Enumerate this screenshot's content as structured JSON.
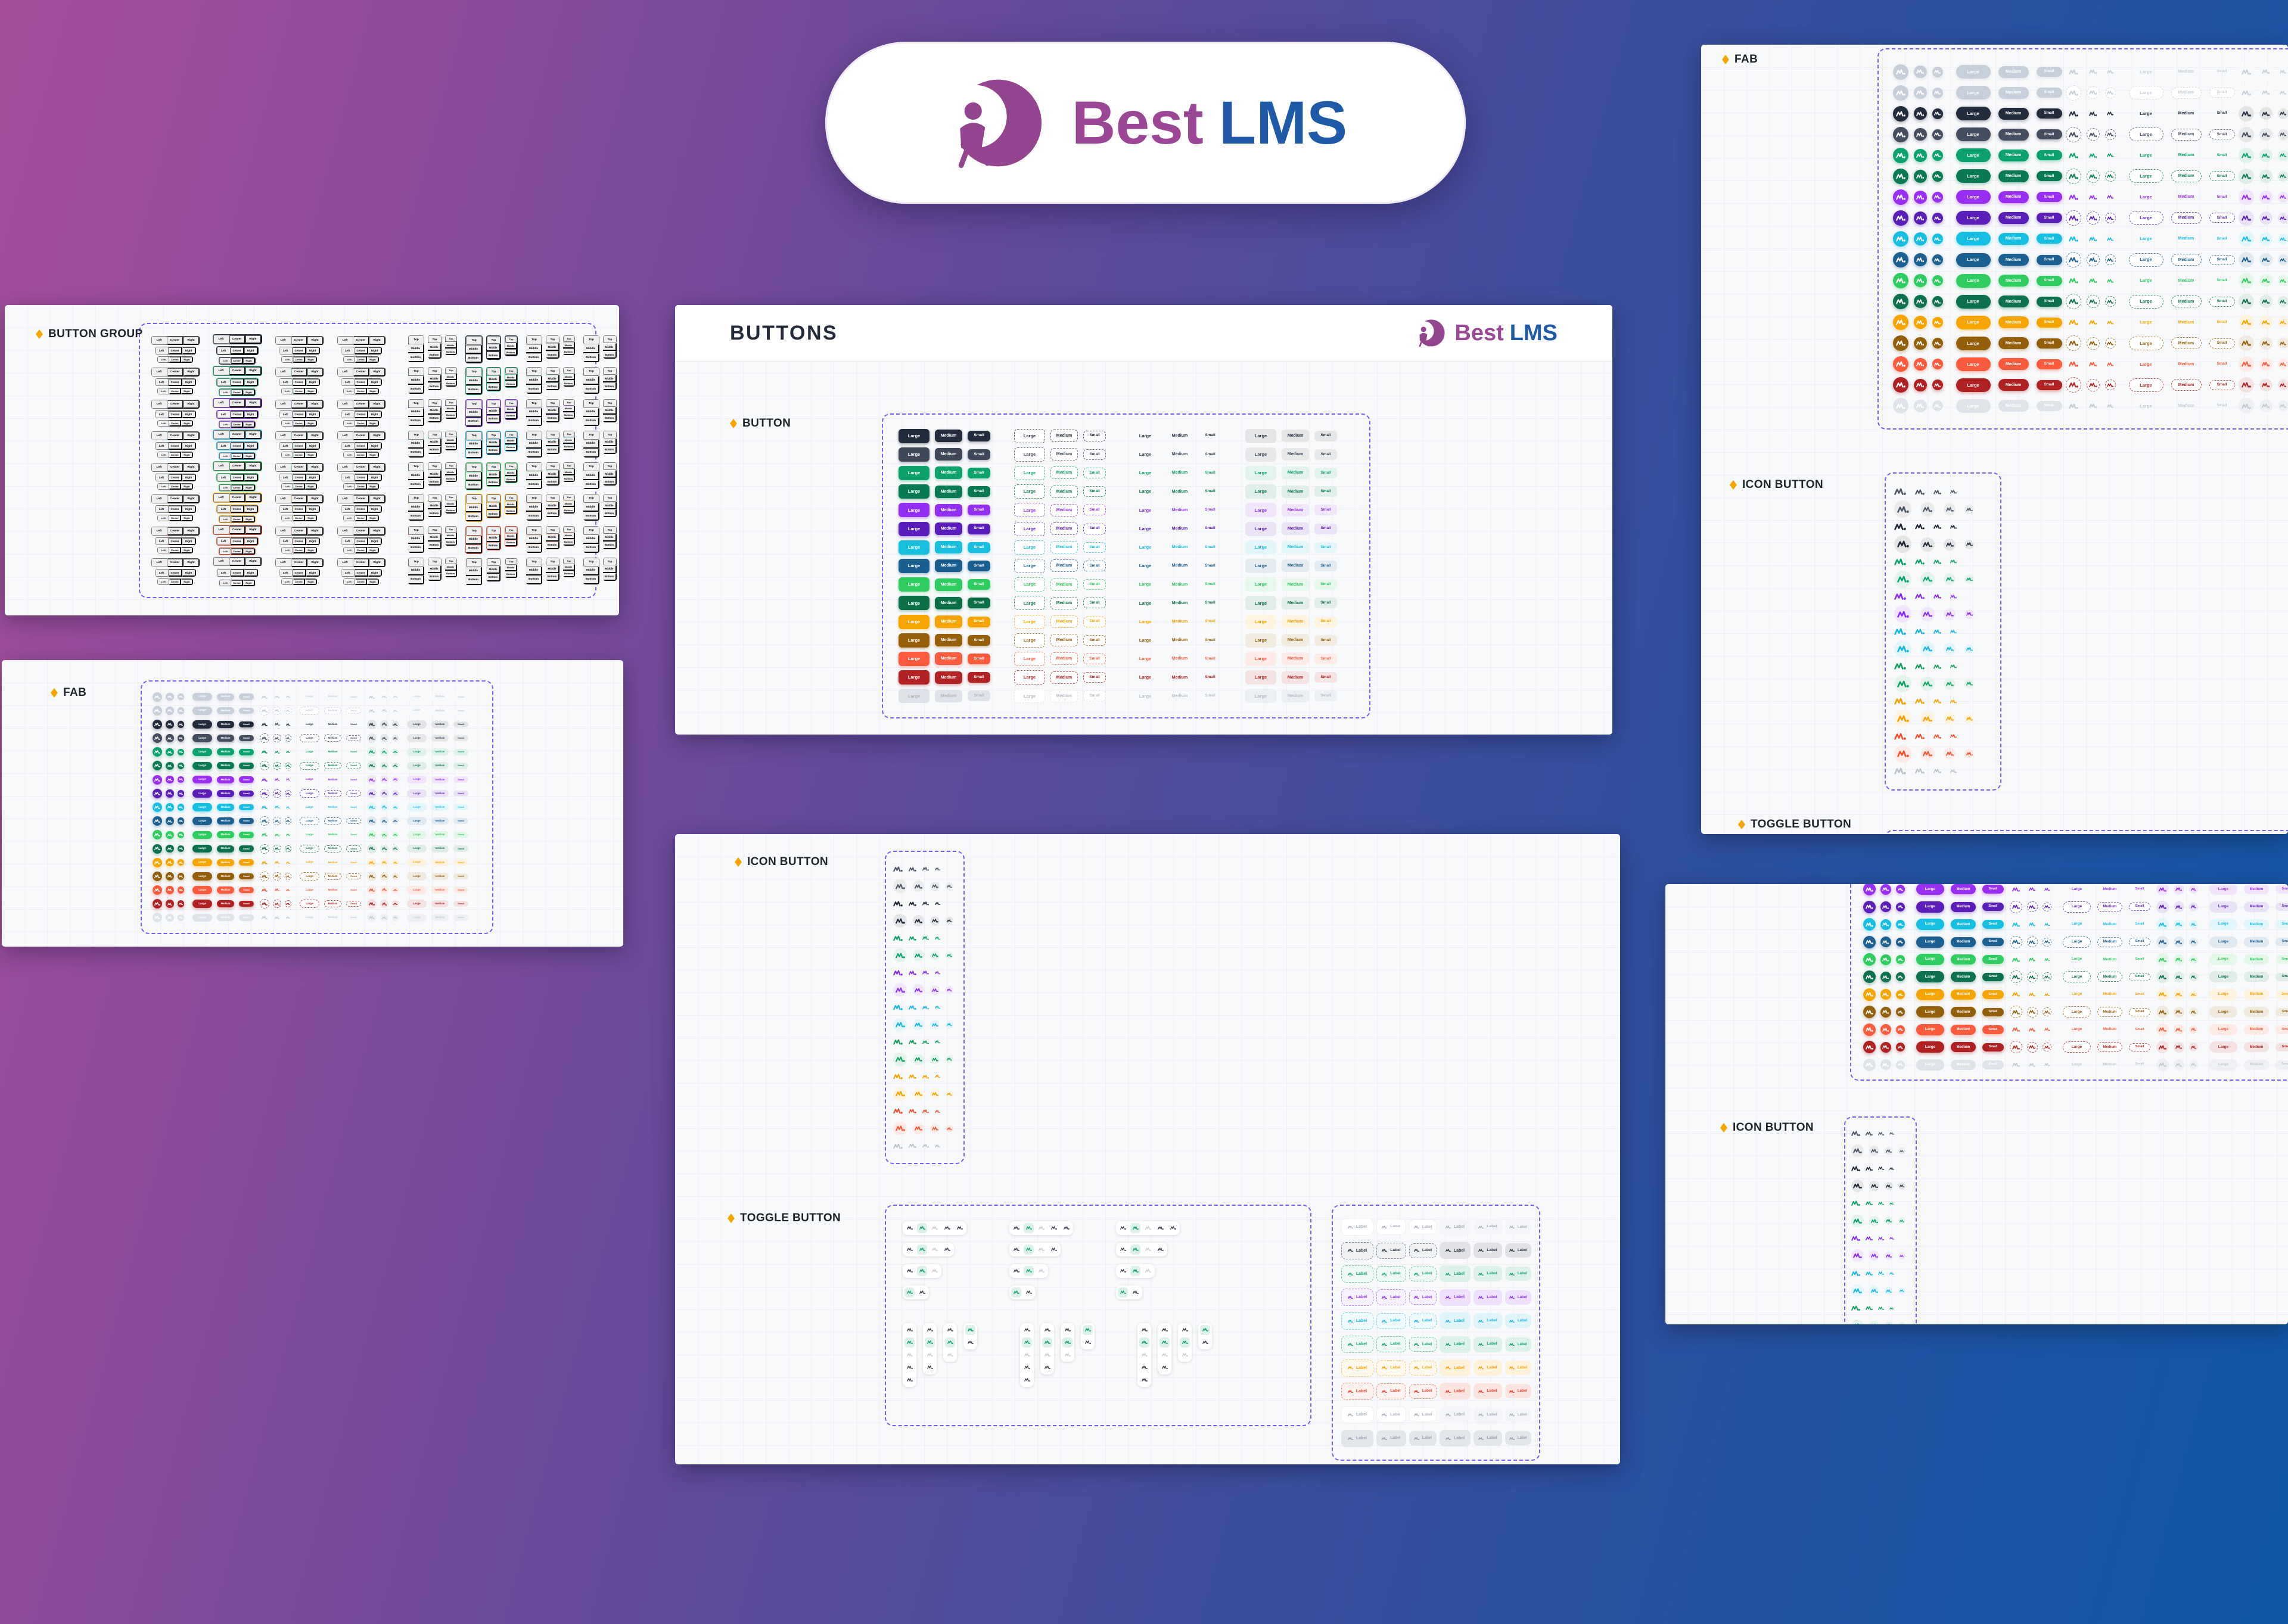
{
  "logo": {
    "brand_first": "Best",
    "brand_second": "LMS"
  },
  "labels": {
    "sizes": [
      "Large",
      "Medium",
      "Small"
    ],
    "horizontal": [
      "Left",
      "Center",
      "Right"
    ],
    "vertical": [
      "Top",
      "Middle",
      "Bottom"
    ],
    "toggle": "Label"
  },
  "accent": {
    "dashed_border": "#7b5bfb",
    "diamond": "#f7a600",
    "logo_purple": "#9c4796",
    "logo_blue": "#1e5aa8"
  },
  "panels": {
    "button_group": {
      "heading": "BUTTON GROUP",
      "rows": [
        {
          "name": "dark-navy",
          "hex": "#232c3d"
        },
        {
          "name": "emerald",
          "hex": "#0da26c"
        },
        {
          "name": "violet",
          "hex": "#8b2cf0"
        },
        {
          "name": "cyan",
          "hex": "#1cb8e0"
        },
        {
          "name": "green",
          "hex": "#2fcd5f"
        },
        {
          "name": "amber",
          "hex": "#f6a400"
        },
        {
          "name": "tomato",
          "hex": "#fb5a3c"
        },
        {
          "name": "disabled",
          "hex": "#c9d0da",
          "disabled": true
        }
      ]
    },
    "fab_left": {
      "heading": "FAB",
      "rows": [
        {
          "name": "gray",
          "hex": "#c7cfda",
          "mid": "ghost"
        },
        {
          "name": "gray",
          "hex": "#c7cfda",
          "mid": "outline"
        },
        {
          "name": "dark-navy",
          "hex": "#232c3d",
          "mid": "ghost"
        },
        {
          "name": "slate",
          "hex": "#454e60",
          "mid": "outline"
        },
        {
          "name": "emerald",
          "hex": "#0ba26d",
          "mid": "ghost"
        },
        {
          "name": "emerald-dark",
          "hex": "#0a7a55",
          "mid": "outline"
        },
        {
          "name": "violet",
          "hex": "#982ff2",
          "mid": "ghost"
        },
        {
          "name": "violet-dark",
          "hex": "#5c1eb8",
          "mid": "outline"
        },
        {
          "name": "cyan",
          "hex": "#16bfe1",
          "mid": "ghost"
        },
        {
          "name": "steel-blue",
          "hex": "#1b6090",
          "mid": "outline"
        },
        {
          "name": "green",
          "hex": "#2fcc5f",
          "mid": "ghost"
        },
        {
          "name": "green-dark",
          "hex": "#0d7150",
          "mid": "outline"
        },
        {
          "name": "amber",
          "hex": "#f6a500",
          "mid": "ghost"
        },
        {
          "name": "brown",
          "hex": "#935f0a",
          "mid": "outline"
        },
        {
          "name": "tomato",
          "hex": "#fc5a3d",
          "mid": "ghost"
        },
        {
          "name": "red-dark",
          "hex": "#b02121",
          "mid": "outline"
        },
        {
          "name": "disabled",
          "hex": "#dfe3e9",
          "mid": "ghost",
          "disabled": true
        }
      ]
    },
    "buttons": {
      "title": "BUTTONS",
      "heading": "BUTTON",
      "rows": [
        {
          "name": "dark-navy",
          "hex": "#232c3d"
        },
        {
          "name": "slate",
          "hex": "#3f4859"
        },
        {
          "name": "emerald",
          "hex": "#0da26c"
        },
        {
          "name": "emerald-dark",
          "hex": "#077a52"
        },
        {
          "name": "violet",
          "hex": "#9130f2"
        },
        {
          "name": "violet-dark",
          "hex": "#5a1cba"
        },
        {
          "name": "cyan",
          "hex": "#17bede"
        },
        {
          "name": "steel-blue",
          "hex": "#1a5f90"
        },
        {
          "name": "green",
          "hex": "#2fcd5f"
        },
        {
          "name": "forest",
          "hex": "#0b7046"
        },
        {
          "name": "amber",
          "hex": "#f6a400"
        },
        {
          "name": "brown",
          "hex": "#956009"
        },
        {
          "name": "tomato",
          "hex": "#fd5b3d"
        },
        {
          "name": "red-dark",
          "hex": "#b32222"
        },
        {
          "name": "disabled",
          "hex": "#c9d0da",
          "disabled": true
        }
      ]
    },
    "icon_toggle": {
      "icon_heading": "ICON BUTTON",
      "toggle_heading": "TOGGLE BUTTON",
      "icon_rows": [
        {
          "name": "slate",
          "hex": "#4b5565",
          "soft": false
        },
        {
          "name": "slate",
          "hex": "#4b5565",
          "soft": true
        },
        {
          "name": "dark-navy",
          "hex": "#1f2737",
          "soft": false
        },
        {
          "name": "dark-navy",
          "hex": "#1f2737",
          "soft": true
        },
        {
          "name": "emerald",
          "hex": "#0ba26d",
          "soft": false
        },
        {
          "name": "emerald",
          "hex": "#0ba26d",
          "soft": true
        },
        {
          "name": "violet",
          "hex": "#8a2bf0",
          "soft": false
        },
        {
          "name": "violet",
          "hex": "#8a2bf0",
          "soft": true
        },
        {
          "name": "cyan",
          "hex": "#16b7dd",
          "soft": false
        },
        {
          "name": "cyan",
          "hex": "#16b7dd",
          "soft": true
        },
        {
          "name": "green",
          "hex": "#12a15f",
          "soft": false
        },
        {
          "name": "green",
          "hex": "#12a15f",
          "soft": true
        },
        {
          "name": "amber",
          "hex": "#f6a100",
          "soft": false
        },
        {
          "name": "amber",
          "hex": "#f6a100",
          "soft": true
        },
        {
          "name": "tomato",
          "hex": "#f4502f",
          "soft": false
        },
        {
          "name": "tomato",
          "hex": "#f4502f",
          "soft": true
        },
        {
          "name": "disabled",
          "hex": "#b9c0cb",
          "soft": false,
          "disabled": true
        }
      ],
      "toggle_counts": [
        5,
        4,
        3,
        2
      ],
      "toggle_active_color": "#0da26c",
      "toggle_rows": [
        {
          "name": "ghost-gray",
          "hex": "#9aa3b1",
          "style": "ghost"
        },
        {
          "name": "outline-dark",
          "hex": "#2a3344",
          "style": "color"
        },
        {
          "name": "emerald",
          "hex": "#0da26c",
          "style": "color"
        },
        {
          "name": "violet",
          "hex": "#8b2cf0",
          "style": "color"
        },
        {
          "name": "cyan",
          "hex": "#17b6de",
          "style": "color"
        },
        {
          "name": "green-soft",
          "hex": "#0da26c",
          "style": "color"
        },
        {
          "name": "amber",
          "hex": "#f6a400",
          "style": "color"
        },
        {
          "name": "red",
          "hex": "#e8402a",
          "style": "color"
        },
        {
          "name": "ghost-light",
          "hex": "#b6bdc9",
          "style": "ghost"
        },
        {
          "name": "filled-gray",
          "hex": "#99a2b0",
          "style": "filled"
        }
      ]
    },
    "fab_right": {
      "heading": "FAB",
      "icon_heading": "ICON BUTTON",
      "toggle_heading": "TOGGLE BUTTON"
    },
    "bottom_right": {
      "icon_heading": "ICON BUTTON",
      "fab_rows": [
        {
          "name": "violet",
          "hex": "#982ff2",
          "mid": "ghost"
        },
        {
          "name": "violet-dark",
          "hex": "#5c1eb8",
          "mid": "outline"
        },
        {
          "name": "cyan",
          "hex": "#16bfe1",
          "mid": "ghost"
        },
        {
          "name": "steel-blue",
          "hex": "#1b6090",
          "mid": "outline"
        },
        {
          "name": "green",
          "hex": "#2fcc5f",
          "mid": "ghost"
        },
        {
          "name": "green-dark",
          "hex": "#0d7150",
          "mid": "outline"
        },
        {
          "name": "amber",
          "hex": "#f6a500",
          "mid": "ghost"
        },
        {
          "name": "brown",
          "hex": "#935f0a",
          "mid": "outline"
        },
        {
          "name": "tomato",
          "hex": "#fc5a3d",
          "mid": "ghost"
        },
        {
          "name": "red-dark",
          "hex": "#b02121",
          "mid": "outline"
        },
        {
          "name": "disabled",
          "hex": "#dfe3e9",
          "mid": "ghost",
          "disabled": true
        }
      ]
    }
  }
}
